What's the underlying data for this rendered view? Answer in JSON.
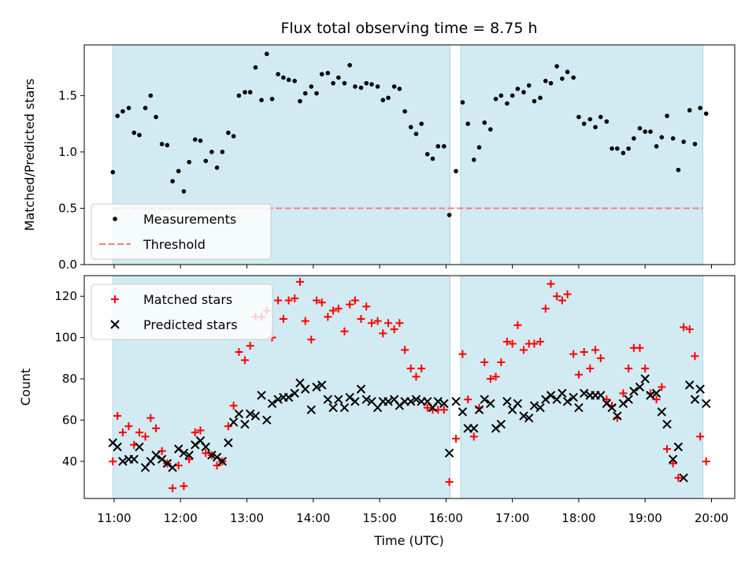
{
  "chart_data": {
    "type": "scatter",
    "title": "Flux total observing time = 8.75 h",
    "xlabel": "Time (UTC)",
    "x_ticks": [
      "11:00",
      "12:00",
      "13:00",
      "14:00",
      "15:00",
      "16:00",
      "17:00",
      "18:00",
      "19:00",
      "20:00"
    ],
    "xlim_hours": [
      10.55,
      20.35
    ],
    "observing_windows_hours": [
      [
        10.98,
        16.06
      ],
      [
        16.22,
        19.87
      ]
    ],
    "shade_color": "#add8e6",
    "panels": [
      {
        "ylabel": "Matched/Predicted stars",
        "ylim": [
          0,
          1.95
        ],
        "y_ticks": [
          "0.0",
          "0.5",
          "1.0",
          "1.5"
        ],
        "legend_placement": "lower-left",
        "threshold": {
          "name": "Threshold",
          "value": 0.5,
          "color": "#f08080"
        },
        "series": [
          {
            "name": "Measurements",
            "marker": "dot",
            "color": "#000000",
            "x": [
              10.98,
              11.05,
              11.13,
              11.22,
              11.3,
              11.38,
              11.47,
              11.55,
              11.63,
              11.72,
              11.8,
              11.88,
              11.97,
              12.05,
              12.13,
              12.22,
              12.3,
              12.38,
              12.47,
              12.55,
              12.63,
              12.72,
              12.8,
              12.88,
              12.97,
              13.05,
              13.13,
              13.22,
              13.3,
              13.38,
              13.47,
              13.55,
              13.63,
              13.72,
              13.8,
              13.88,
              13.97,
              14.05,
              14.13,
              14.22,
              14.3,
              14.38,
              14.47,
              14.55,
              14.63,
              14.72,
              14.8,
              14.88,
              14.97,
              15.05,
              15.13,
              15.22,
              15.3,
              15.38,
              15.47,
              15.55,
              15.63,
              15.72,
              15.8,
              15.88,
              15.97,
              16.05,
              16.15,
              16.25,
              16.33,
              16.42,
              16.5,
              16.58,
              16.67,
              16.75,
              16.83,
              16.92,
              17.0,
              17.08,
              17.17,
              17.25,
              17.33,
              17.42,
              17.5,
              17.58,
              17.67,
              17.75,
              17.83,
              17.92,
              18.0,
              18.08,
              18.17,
              18.25,
              18.33,
              18.42,
              18.5,
              18.58,
              18.67,
              18.75,
              18.83,
              18.92,
              19.0,
              19.08,
              19.17,
              19.25,
              19.33,
              19.42,
              19.5,
              19.58,
              19.67,
              19.75,
              19.83,
              19.92
            ],
            "y": [
              0.82,
              1.32,
              1.36,
              1.39,
              1.17,
              1.15,
              1.39,
              1.5,
              1.31,
              1.07,
              1.06,
              0.74,
              0.83,
              0.65,
              0.91,
              1.11,
              1.1,
              0.92,
              1.0,
              0.86,
              1.0,
              1.17,
              1.14,
              1.5,
              1.53,
              1.53,
              1.75,
              1.46,
              1.87,
              1.47,
              1.69,
              1.66,
              1.64,
              1.63,
              1.45,
              1.52,
              1.58,
              1.52,
              1.69,
              1.7,
              1.61,
              1.66,
              1.61,
              1.77,
              1.58,
              1.57,
              1.61,
              1.6,
              1.58,
              1.46,
              1.48,
              1.58,
              1.56,
              1.36,
              1.22,
              1.16,
              1.25,
              0.98,
              0.94,
              1.05,
              1.05,
              0.44,
              0.83,
              1.44,
              1.25,
              0.93,
              1.04,
              1.26,
              1.2,
              1.47,
              1.5,
              1.43,
              1.5,
              1.56,
              1.53,
              1.59,
              1.45,
              1.48,
              1.63,
              1.61,
              1.76,
              1.65,
              1.71,
              1.66,
              1.31,
              1.25,
              1.29,
              1.22,
              1.31,
              1.27,
              1.03,
              1.03,
              0.99,
              1.03,
              1.12,
              1.21,
              1.18,
              1.18,
              1.05,
              1.13,
              1.32,
              1.12,
              0.84,
              1.09,
              1.37,
              1.07,
              1.39,
              1.34
            ]
          }
        ]
      },
      {
        "ylabel": "Count",
        "ylim": [
          22,
          130
        ],
        "y_ticks": [
          "40",
          "60",
          "80",
          "100",
          "120"
        ],
        "legend_placement": "upper-left",
        "series": [
          {
            "name": "Matched stars",
            "marker": "plus",
            "color": "#ff0000",
            "x": [
              10.98,
              11.05,
              11.13,
              11.22,
              11.3,
              11.38,
              11.47,
              11.55,
              11.63,
              11.72,
              11.8,
              11.88,
              11.97,
              12.05,
              12.13,
              12.22,
              12.3,
              12.38,
              12.47,
              12.55,
              12.63,
              12.72,
              12.8,
              12.88,
              12.97,
              13.05,
              13.13,
              13.22,
              13.3,
              13.38,
              13.47,
              13.55,
              13.63,
              13.72,
              13.8,
              13.88,
              13.97,
              14.05,
              14.13,
              14.22,
              14.3,
              14.38,
              14.47,
              14.55,
              14.63,
              14.72,
              14.8,
              14.88,
              14.97,
              15.05,
              15.13,
              15.22,
              15.3,
              15.38,
              15.47,
              15.55,
              15.63,
              15.72,
              15.8,
              15.88,
              15.97,
              16.05,
              16.15,
              16.25,
              16.33,
              16.42,
              16.5,
              16.58,
              16.67,
              16.75,
              16.83,
              16.92,
              17.0,
              17.08,
              17.17,
              17.25,
              17.33,
              17.42,
              17.5,
              17.58,
              17.67,
              17.75,
              17.83,
              17.92,
              18.0,
              18.08,
              18.17,
              18.25,
              18.33,
              18.42,
              18.5,
              18.58,
              18.67,
              18.75,
              18.83,
              18.92,
              19.0,
              19.08,
              19.17,
              19.25,
              19.33,
              19.42,
              19.5,
              19.58,
              19.67,
              19.75,
              19.83,
              19.92
            ],
            "y": [
              40,
              62,
              54,
              57,
              48,
              54,
              52,
              61,
              56,
              45,
              39,
              27,
              38,
              28,
              41,
              54,
              55,
              44,
              43,
              38,
              40,
              57,
              67,
              93,
              89,
              96,
              110,
              110,
              113,
              100,
              118,
              109,
              118,
              119,
              127,
              108,
              99,
              118,
              117,
              110,
              113,
              114,
              103,
              116,
              118,
              109,
              115,
              107,
              108,
              102,
              107,
              104,
              107,
              94,
              85,
              81,
              85,
              66,
              65,
              65,
              65,
              30,
              51,
              92,
              70,
              52,
              66,
              88,
              80,
              81,
              88,
              98,
              97,
              106,
              94,
              97,
              97,
              98,
              114,
              126,
              120,
              118,
              121,
              92,
              82,
              93,
              85,
              94,
              90,
              70,
              67,
              61,
              73,
              85,
              95,
              95,
              85,
              73,
              70,
              76,
              46,
              39,
              32,
              105,
              104,
              91,
              52,
              40
            ]
          },
          {
            "name": "Predicted stars",
            "marker": "x",
            "color": "#000000",
            "x": [
              10.98,
              11.05,
              11.13,
              11.22,
              11.3,
              11.38,
              11.47,
              11.55,
              11.63,
              11.72,
              11.8,
              11.88,
              11.97,
              12.05,
              12.13,
              12.22,
              12.3,
              12.38,
              12.47,
              12.55,
              12.63,
              12.72,
              12.8,
              12.88,
              12.97,
              13.05,
              13.13,
              13.22,
              13.3,
              13.38,
              13.47,
              13.55,
              13.63,
              13.72,
              13.8,
              13.88,
              13.97,
              14.05,
              14.13,
              14.22,
              14.3,
              14.38,
              14.47,
              14.55,
              14.63,
              14.72,
              14.8,
              14.88,
              14.97,
              15.05,
              15.13,
              15.22,
              15.3,
              15.38,
              15.47,
              15.55,
              15.63,
              15.72,
              15.8,
              15.88,
              15.97,
              16.05,
              16.15,
              16.25,
              16.33,
              16.42,
              16.5,
              16.58,
              16.67,
              16.75,
              16.83,
              16.92,
              17.0,
              17.08,
              17.17,
              17.25,
              17.33,
              17.42,
              17.5,
              17.58,
              17.67,
              17.75,
              17.83,
              17.92,
              18.0,
              18.08,
              18.17,
              18.25,
              18.33,
              18.42,
              18.5,
              18.58,
              18.67,
              18.75,
              18.83,
              18.92,
              19.0,
              19.08,
              19.17,
              19.25,
              19.33,
              19.42,
              19.5,
              19.58,
              19.67,
              19.75,
              19.83,
              19.92
            ],
            "y": [
              49,
              47,
              40,
              41,
              41,
              47,
              37,
              40,
              43,
              41,
              39,
              37,
              46,
              44,
              43,
              48,
              50,
              47,
              43,
              42,
              40,
              49,
              59,
              63,
              58,
              63,
              62,
              72,
              60,
              68,
              70,
              71,
              71,
              73,
              78,
              75,
              65,
              76,
              77,
              70,
              66,
              70,
              66,
              71,
              69,
              75,
              70,
              69,
              66,
              69,
              69,
              70,
              67,
              69,
              69,
              70,
              69,
              69,
              66,
              69,
              68,
              44,
              69,
              64,
              56,
              56,
              65,
              70,
              68,
              56,
              58,
              69,
              65,
              68,
              62,
              61,
              67,
              66,
              70,
              72,
              70,
              73,
              69,
              71,
              66,
              73,
              72,
              72,
              72,
              68,
              66,
              62,
              68,
              70,
              74,
              76,
              80,
              72,
              73,
              64,
              58,
              41,
              47,
              32,
              77,
              70,
              75,
              68
            ]
          }
        ]
      }
    ]
  }
}
